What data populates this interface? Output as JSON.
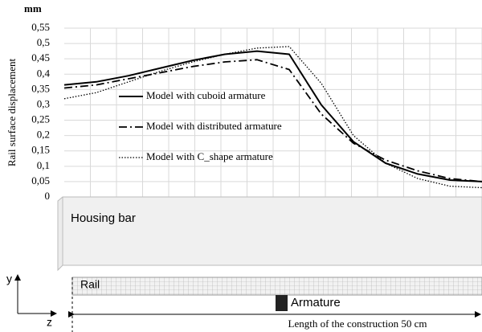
{
  "chart_data": {
    "type": "line",
    "unit": "mm",
    "y_label": "Rail surface displacement",
    "categories": [
      null,
      null,
      null,
      null,
      null,
      null,
      null,
      null,
      null,
      null,
      null,
      null,
      null,
      null
    ],
    "series": [
      {
        "name": "Model with cuboid armature",
        "color": "#000000",
        "dash": "solid",
        "values": [
          0.365,
          0.375,
          0.395,
          0.42,
          0.445,
          0.465,
          0.475,
          0.465,
          0.3,
          0.18,
          0.11,
          0.075,
          0.055,
          0.05
        ]
      },
      {
        "name": "Model with distributed armature",
        "color": "#000000",
        "dash": "dashdot",
        "values": [
          0.355,
          0.365,
          0.385,
          0.405,
          0.425,
          0.44,
          0.447,
          0.415,
          0.27,
          0.175,
          0.12,
          0.085,
          0.06,
          0.05
        ]
      },
      {
        "name": "Model with C_shape armature",
        "color": "#000000",
        "dash": "dotted",
        "values": [
          0.32,
          0.34,
          0.375,
          0.41,
          0.44,
          0.465,
          0.485,
          0.49,
          0.37,
          0.2,
          0.11,
          0.06,
          0.035,
          0.03
        ]
      }
    ],
    "ylim": [
      0,
      0.55
    ],
    "yticks": [
      0,
      {
        "value": 0.05,
        "label": "0,05"
      },
      {
        "value": 0.1,
        "label": "0,1"
      },
      {
        "value": 0.15,
        "label": "0,15"
      },
      {
        "value": 0.2,
        "label": "0,2"
      },
      {
        "value": 0.25,
        "label": "0,25"
      },
      {
        "value": 0.3,
        "label": "0,3"
      },
      {
        "value": 0.35,
        "label": "0,35"
      },
      {
        "value": 0.4,
        "label": "0,4"
      },
      {
        "value": 0.45,
        "label": "0,45"
      },
      {
        "value": 0.5,
        "label": "0,5"
      },
      {
        "value": 0.55,
        "label": "0,55"
      }
    ],
    "grid": true
  },
  "diagram": {
    "housing": "Housing bar",
    "rail": "Rail",
    "armature": "Armature",
    "length": "Length of the construction 50 cm",
    "axis_y": "y",
    "axis_z": "z"
  }
}
